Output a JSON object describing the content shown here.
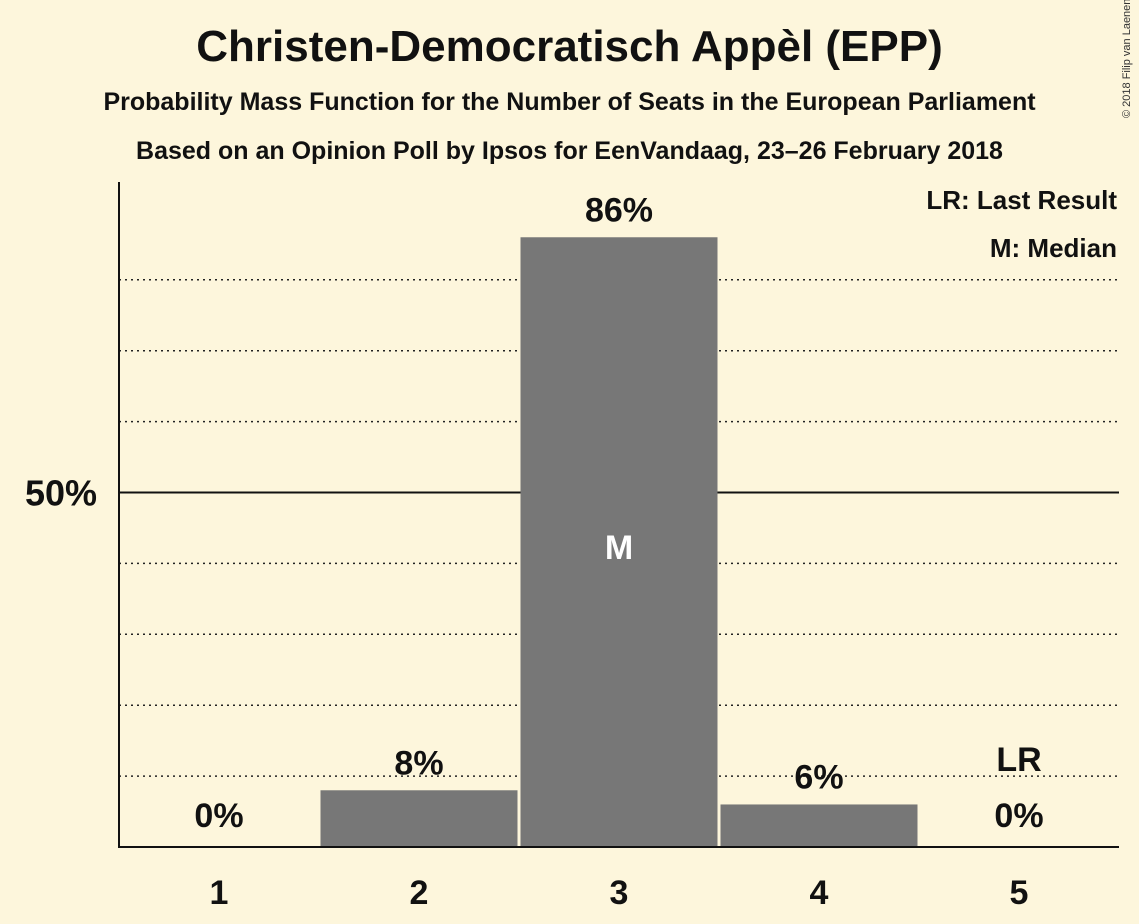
{
  "title": "Christen-Democratisch Appèl (EPP)",
  "subtitle": "Probability Mass Function for the Number of Seats in the European Parliament",
  "subtitle2": "Based on an Opinion Poll by Ipsos for EenVandaag, 23–26 February 2018",
  "copyright": "© 2018 Filip van Laenen",
  "legend": {
    "last_result": "LR: Last Result",
    "median": "M: Median"
  },
  "colors": {
    "background": "#fdf6dc",
    "bar": "#777777",
    "text": "#111111"
  },
  "chart_data": {
    "type": "bar",
    "title": "Christen-Democratisch Appèl (EPP)",
    "xlabel": "",
    "ylabel": "",
    "categories": [
      "1",
      "2",
      "3",
      "4",
      "5"
    ],
    "values": [
      0,
      8,
      86,
      6,
      0
    ],
    "value_labels": [
      "0%",
      "8%",
      "86%",
      "6%",
      "0%"
    ],
    "ylim": [
      0,
      94
    ],
    "y_tick_labels": [
      {
        "value": 50,
        "label": "50%"
      }
    ],
    "gridlines_dotted": [
      10,
      20,
      30,
      40,
      60,
      70,
      80
    ],
    "gridlines_solid": [
      50
    ],
    "median_category": "3",
    "median_marker": "M",
    "last_result_category": "5",
    "last_result_marker": "LR"
  }
}
